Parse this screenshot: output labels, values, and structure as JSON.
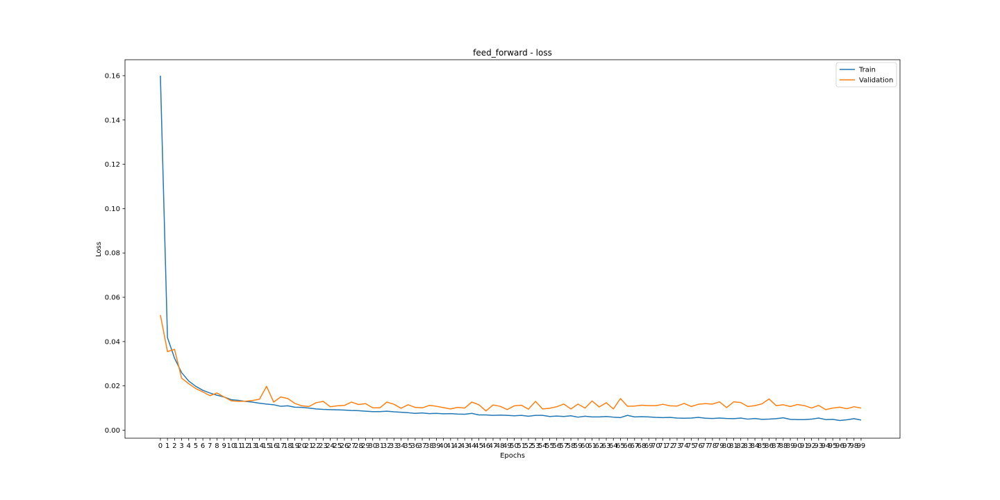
{
  "chart_data": {
    "type": "line",
    "title": "feed_forward - loss",
    "xlabel": "Epochs",
    "ylabel": "Loss",
    "xlim": [
      -5,
      104.5
    ],
    "ylim": [
      -0.0036,
      0.1672
    ],
    "x_ticks": [
      0,
      1,
      2,
      3,
      4,
      5,
      6,
      7,
      8,
      9,
      10,
      11,
      12,
      13,
      14,
      15,
      16,
      17,
      18,
      19,
      20,
      21,
      22,
      23,
      24,
      25,
      26,
      27,
      28,
      29,
      30,
      31,
      32,
      33,
      34,
      35,
      36,
      37,
      38,
      39,
      40,
      41,
      42,
      43,
      44,
      45,
      46,
      47,
      48,
      49,
      50,
      51,
      52,
      53,
      54,
      55,
      56,
      57,
      58,
      59,
      60,
      61,
      62,
      63,
      64,
      65,
      66,
      67,
      68,
      69,
      70,
      71,
      72,
      73,
      74,
      75,
      76,
      77,
      78,
      79,
      80,
      81,
      82,
      83,
      84,
      85,
      86,
      87,
      88,
      89,
      90,
      91,
      92,
      93,
      94,
      95,
      96,
      97,
      98,
      99
    ],
    "y_ticks": [
      "0.00",
      "0.02",
      "0.04",
      "0.06",
      "0.08",
      "0.10",
      "0.12",
      "0.14",
      "0.16"
    ],
    "grid": false,
    "legend_position": "top-right",
    "series": [
      {
        "name": "Train",
        "color": "#1f77b4",
        "values": [
          0.16,
          0.0418,
          0.0325,
          0.026,
          0.0222,
          0.0198,
          0.018,
          0.0168,
          0.0158,
          0.015,
          0.0138,
          0.0135,
          0.013,
          0.0127,
          0.0122,
          0.0118,
          0.0115,
          0.0108,
          0.011,
          0.0104,
          0.0103,
          0.01,
          0.0096,
          0.0094,
          0.0093,
          0.0092,
          0.0091,
          0.0089,
          0.0088,
          0.0086,
          0.0084,
          0.0084,
          0.0086,
          0.0083,
          0.0081,
          0.0079,
          0.0076,
          0.0078,
          0.0075,
          0.0076,
          0.0074,
          0.0075,
          0.0073,
          0.0072,
          0.0076,
          0.0069,
          0.0069,
          0.0067,
          0.0068,
          0.0067,
          0.0065,
          0.0067,
          0.0063,
          0.0067,
          0.0067,
          0.0062,
          0.0064,
          0.0062,
          0.0065,
          0.0059,
          0.0063,
          0.006,
          0.006,
          0.0062,
          0.0059,
          0.0057,
          0.0067,
          0.006,
          0.0061,
          0.006,
          0.0058,
          0.0057,
          0.0058,
          0.0055,
          0.0054,
          0.0055,
          0.0058,
          0.0054,
          0.0053,
          0.0055,
          0.0053,
          0.0052,
          0.0055,
          0.005,
          0.0053,
          0.0049,
          0.005,
          0.0052,
          0.0056,
          0.0049,
          0.0048,
          0.0048,
          0.005,
          0.0055,
          0.0048,
          0.0049,
          0.0044,
          0.0047,
          0.0052,
          0.0046
        ]
      },
      {
        "name": "Validation",
        "color": "#ff7f0e",
        "values": [
          0.052,
          0.0355,
          0.0365,
          0.0235,
          0.021,
          0.0188,
          0.0173,
          0.0156,
          0.0168,
          0.015,
          0.0133,
          0.013,
          0.0131,
          0.0134,
          0.014,
          0.0198,
          0.0127,
          0.015,
          0.0143,
          0.0121,
          0.011,
          0.0107,
          0.0124,
          0.013,
          0.0106,
          0.011,
          0.0112,
          0.0127,
          0.0116,
          0.012,
          0.0101,
          0.0101,
          0.0127,
          0.0117,
          0.0099,
          0.0115,
          0.0103,
          0.0101,
          0.0112,
          0.0108,
          0.0102,
          0.0096,
          0.0103,
          0.01,
          0.0127,
          0.0115,
          0.0087,
          0.0114,
          0.0108,
          0.0093,
          0.011,
          0.0113,
          0.0095,
          0.013,
          0.0096,
          0.0099,
          0.0106,
          0.0118,
          0.0096,
          0.0118,
          0.01,
          0.0132,
          0.0105,
          0.0124,
          0.0096,
          0.0143,
          0.0108,
          0.0109,
          0.0113,
          0.0111,
          0.0111,
          0.0117,
          0.011,
          0.0109,
          0.0121,
          0.0107,
          0.0117,
          0.012,
          0.0118,
          0.0128,
          0.0102,
          0.0128,
          0.0125,
          0.0107,
          0.0111,
          0.0119,
          0.0141,
          0.0111,
          0.0115,
          0.0107,
          0.0116,
          0.0111,
          0.01,
          0.0112,
          0.0093,
          0.01,
          0.0104,
          0.0097,
          0.0106,
          0.01
        ]
      }
    ]
  }
}
